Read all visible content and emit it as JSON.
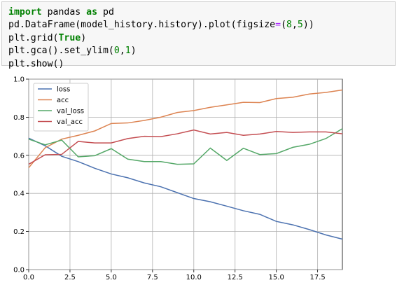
{
  "code_cell": {
    "lines": [
      [
        {
          "t": "import",
          "c": "kw"
        },
        {
          "t": " pandas ",
          "c": "fn"
        },
        {
          "t": "as",
          "c": "kw"
        },
        {
          "t": " pd",
          "c": "fn"
        }
      ],
      [
        {
          "t": "pd.DataFrame(model_history.history).plot(figsize",
          "c": "fn"
        },
        {
          "t": "=",
          "c": "op"
        },
        {
          "t": "(",
          "c": "fn"
        },
        {
          "t": "8",
          "c": "num"
        },
        {
          "t": ",",
          "c": "fn"
        },
        {
          "t": "5",
          "c": "num"
        },
        {
          "t": "))",
          "c": "fn"
        }
      ],
      [
        {
          "t": "plt.grid(",
          "c": "fn"
        },
        {
          "t": "True",
          "c": "kw"
        },
        {
          "t": ")",
          "c": "fn"
        }
      ],
      [
        {
          "t": "plt.gca().set_ylim(",
          "c": "fn"
        },
        {
          "t": "0",
          "c": "num"
        },
        {
          "t": ",",
          "c": "fn"
        },
        {
          "t": "1",
          "c": "num"
        },
        {
          "t": ")",
          "c": "fn"
        }
      ],
      [
        {
          "t": "plt.show()",
          "c": "fn"
        }
      ]
    ]
  },
  "chart_data": {
    "type": "line",
    "x": [
      0,
      1,
      2,
      3,
      4,
      5,
      6,
      7,
      8,
      9,
      10,
      11,
      12,
      13,
      14,
      15,
      16,
      17,
      18,
      19
    ],
    "xlim": [
      0,
      19
    ],
    "ylim": [
      0,
      1
    ],
    "xticks": [
      "0.0",
      "2.5",
      "5.0",
      "7.5",
      "10.0",
      "12.5",
      "15.0",
      "17.5"
    ],
    "xtick_values": [
      0,
      2.5,
      5,
      7.5,
      10,
      12.5,
      15,
      17.5
    ],
    "yticks": [
      "0.0",
      "0.2",
      "0.4",
      "0.6",
      "0.8",
      "1.0"
    ],
    "ytick_values": [
      0,
      0.2,
      0.4,
      0.6,
      0.8,
      1.0
    ],
    "grid": true,
    "legend_position": "upper-left",
    "series": [
      {
        "name": "loss",
        "color": "#4c72b0",
        "values": [
          0.69,
          0.65,
          0.595,
          0.567,
          0.532,
          0.502,
          0.482,
          0.455,
          0.435,
          0.404,
          0.373,
          0.356,
          0.333,
          0.309,
          0.29,
          0.253,
          0.235,
          0.21,
          0.182,
          0.16
        ]
      },
      {
        "name": "acc",
        "color": "#dd8452",
        "values": [
          0.535,
          0.64,
          0.685,
          0.705,
          0.728,
          0.767,
          0.77,
          0.783,
          0.8,
          0.825,
          0.835,
          0.852,
          0.865,
          0.878,
          0.877,
          0.898,
          0.905,
          0.922,
          0.93,
          0.943
        ]
      },
      {
        "name": "val_loss",
        "color": "#55a868",
        "values": [
          0.685,
          0.655,
          0.68,
          0.592,
          0.598,
          0.635,
          0.58,
          0.567,
          0.567,
          0.553,
          0.555,
          0.638,
          0.573,
          0.637,
          0.604,
          0.609,
          0.642,
          0.658,
          0.688,
          0.74
        ]
      },
      {
        "name": "val_acc",
        "color": "#c44e52",
        "values": [
          0.553,
          0.603,
          0.605,
          0.673,
          0.665,
          0.665,
          0.688,
          0.7,
          0.698,
          0.713,
          0.733,
          0.712,
          0.72,
          0.705,
          0.712,
          0.725,
          0.72,
          0.723,
          0.723,
          0.713
        ]
      }
    ]
  }
}
